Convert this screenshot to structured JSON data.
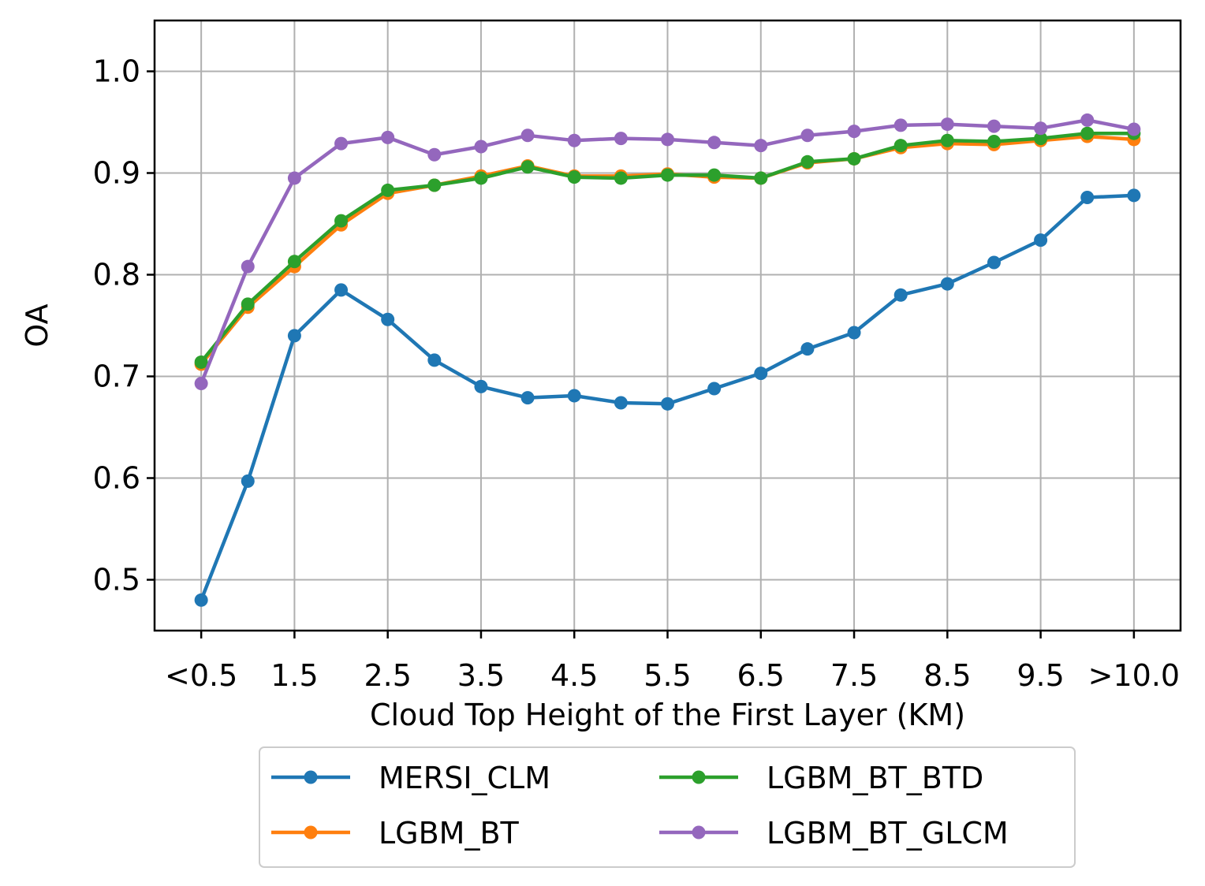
{
  "chart_data": {
    "type": "line",
    "title": "",
    "xlabel": "Cloud Top Height of the First Layer (KM)",
    "ylabel": "OA",
    "x": [
      0.5,
      1.0,
      1.5,
      2.0,
      2.5,
      3.0,
      3.5,
      4.0,
      4.5,
      5.0,
      5.5,
      6.0,
      6.5,
      7.0,
      7.5,
      8.0,
      8.5,
      9.0,
      9.5,
      10.0,
      10.5
    ],
    "xticks": [
      {
        "value": 0.5,
        "label": "<0.5"
      },
      {
        "value": 1.5,
        "label": "1.5"
      },
      {
        "value": 2.5,
        "label": "2.5"
      },
      {
        "value": 3.5,
        "label": "3.5"
      },
      {
        "value": 4.5,
        "label": "4.5"
      },
      {
        "value": 5.5,
        "label": "5.5"
      },
      {
        "value": 6.5,
        "label": "6.5"
      },
      {
        "value": 7.5,
        "label": "7.5"
      },
      {
        "value": 8.5,
        "label": "8.5"
      },
      {
        "value": 9.5,
        "label": "9.5"
      },
      {
        "value": 10.5,
        "label": ">10.0"
      }
    ],
    "yticks": [
      {
        "value": 0.5,
        "label": "0.5"
      },
      {
        "value": 0.6,
        "label": "0.6"
      },
      {
        "value": 0.7,
        "label": "0.7"
      },
      {
        "value": 0.8,
        "label": "0.8"
      },
      {
        "value": 0.9,
        "label": "0.9"
      },
      {
        "value": 1.0,
        "label": "1.0"
      }
    ],
    "xlim": [
      0.0,
      11.0
    ],
    "ylim": [
      0.45,
      1.05
    ],
    "grid": true,
    "legend_position": "below",
    "series": [
      {
        "name": "MERSI_CLM",
        "color": "#1f77b4",
        "values": [
          0.48,
          0.597,
          0.74,
          0.785,
          0.756,
          0.716,
          0.69,
          0.679,
          0.681,
          0.674,
          0.673,
          0.688,
          0.703,
          0.727,
          0.743,
          0.78,
          0.791,
          0.812,
          0.834,
          0.876,
          0.878
        ]
      },
      {
        "name": "LGBM_BT",
        "color": "#ff7f0e",
        "values": [
          0.712,
          0.768,
          0.808,
          0.849,
          0.88,
          0.888,
          0.897,
          0.907,
          0.897,
          0.897,
          0.899,
          0.896,
          0.895,
          0.91,
          0.914,
          0.925,
          0.929,
          0.928,
          0.932,
          0.936,
          0.933
        ]
      },
      {
        "name": "LGBM_BT_BTD",
        "color": "#2ca02c",
        "values": [
          0.714,
          0.771,
          0.813,
          0.853,
          0.883,
          0.888,
          0.895,
          0.906,
          0.896,
          0.895,
          0.898,
          0.898,
          0.895,
          0.911,
          0.914,
          0.927,
          0.932,
          0.931,
          0.934,
          0.939,
          0.939
        ]
      },
      {
        "name": "LGBM_BT_GLCM",
        "color": "#9467bd",
        "values": [
          0.693,
          0.808,
          0.895,
          0.929,
          0.935,
          0.918,
          0.926,
          0.937,
          0.932,
          0.934,
          0.933,
          0.93,
          0.927,
          0.937,
          0.941,
          0.947,
          0.948,
          0.946,
          0.944,
          0.952,
          0.943
        ]
      }
    ]
  }
}
